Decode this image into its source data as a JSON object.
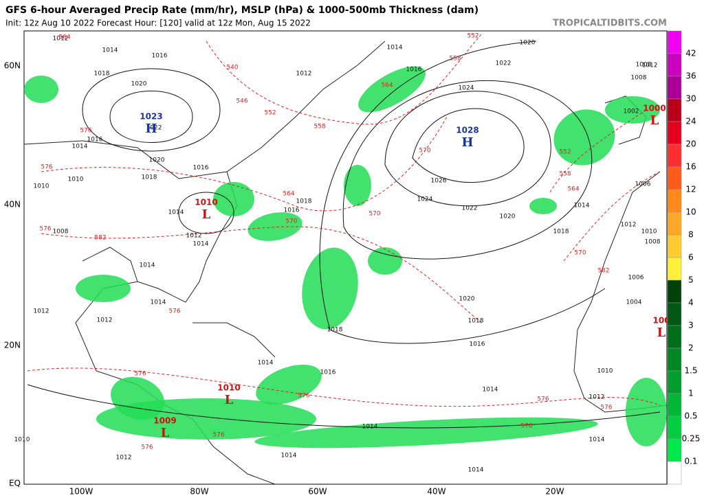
{
  "header": {
    "title": "GFS 6-hour Averaged Precip Rate (mm/hr), MSLP (hPa) & 1000-500mb Thickness (dam)",
    "subtitle": "Init: 12z Aug 10 2022   Forecast Hour: [120]   valid at 12z Mon, Aug 15 2022",
    "site": "TROPICALTIDBITS.COM"
  },
  "map": {
    "lat_labels": [
      "60N",
      "40N",
      "20N",
      "EQ"
    ],
    "lon_labels": [
      "100W",
      "80W",
      "60W",
      "40W",
      "20W"
    ],
    "high_color": "#1a3596",
    "low_color": "#cc1111",
    "isobar_color": "#111111",
    "thickness_color": "#dd2222",
    "precip_color": "#22dd55",
    "centers": [
      {
        "letter": "H",
        "value": "1023"
      },
      {
        "letter": "H",
        "value": "1028"
      },
      {
        "letter": "L",
        "value": "1010"
      },
      {
        "letter": "L",
        "value": "1000"
      },
      {
        "letter": "L",
        "value": "1010"
      },
      {
        "letter": "L",
        "value": "1009"
      },
      {
        "letter": "L",
        "value": "100"
      }
    ],
    "isobar_labels": [
      "1012",
      "1014",
      "1016",
      "1018",
      "1020",
      "1022",
      "1016",
      "1014",
      "1020",
      "1018",
      "1016",
      "1010",
      "1010",
      "1014",
      "1012",
      "1014",
      "1008",
      "1014",
      "1014",
      "1012",
      "1012",
      "1012",
      "1012",
      "1014",
      "1016",
      "1020",
      "1022",
      "1024",
      "1026",
      "1024",
      "1022",
      "1020",
      "1018",
      "1014",
      "1018",
      "1016",
      "1020",
      "1018",
      "1018",
      "1016",
      "1014",
      "1016",
      "1014",
      "1014",
      "1014",
      "1014",
      "1006",
      "1010",
      "1012",
      "1014",
      "1004",
      "1006",
      "1008",
      "1010",
      "1012",
      "1008",
      "1002",
      "1008",
      "1012",
      "1010"
    ],
    "thickness_labels": [
      "564",
      "552",
      "558",
      "540",
      "546",
      "552",
      "558",
      "564",
      "570",
      "576",
      "564",
      "570",
      "570",
      "576",
      "576",
      "582",
      "576",
      "576",
      "576",
      "576",
      "576",
      "558",
      "564",
      "552",
      "570",
      "582",
      "576",
      "576",
      "576"
    ]
  },
  "colorbar": {
    "labels": [
      "42",
      "36",
      "30",
      "24",
      "20",
      "16",
      "12",
      "10",
      "8",
      "6",
      "5",
      "4",
      "3",
      "2",
      "1.5",
      "1",
      "0.5",
      "0.25",
      "0.1"
    ],
    "colors": [
      "#f000f0",
      "#cc00c0",
      "#aa0095",
      "#b80018",
      "#e4001e",
      "#ff2f2f",
      "#ff5c1c",
      "#ff8a1a",
      "#ffa828",
      "#ffcb33",
      "#fff03c",
      "#00420a",
      "#005812",
      "#006e1a",
      "#008622",
      "#009e2c",
      "#00b636",
      "#00ce40",
      "#00e84c",
      "#ffffff"
    ]
  }
}
